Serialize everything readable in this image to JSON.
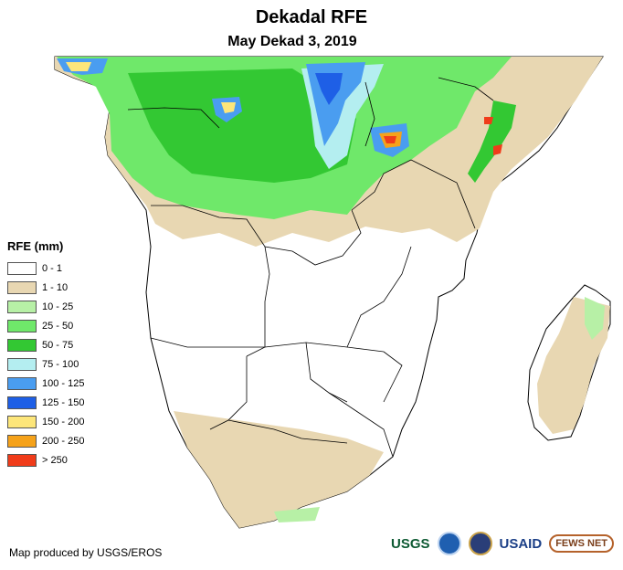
{
  "title": "Dekadal RFE",
  "subtitle": "May Dekad 3, 2019",
  "legend": {
    "title": "RFE (mm)",
    "items": [
      {
        "label": "0 - 1",
        "color": "#ffffff"
      },
      {
        "label": "1 - 10",
        "color": "#e8d7b2"
      },
      {
        "label": "10 - 25",
        "color": "#b7f0a6"
      },
      {
        "label": "25 - 50",
        "color": "#6fe86a"
      },
      {
        "label": "50 - 75",
        "color": "#33c833"
      },
      {
        "label": "75 - 100",
        "color": "#b4eef0"
      },
      {
        "label": "100 - 125",
        "color": "#4a9df0"
      },
      {
        "label": "125 - 150",
        "color": "#1e5fe6"
      },
      {
        "label": "150 - 200",
        "color": "#fde67a"
      },
      {
        "label": "200 - 250",
        "color": "#f5a21a"
      },
      {
        "label": "> 250",
        "color": "#f03c1a"
      }
    ]
  },
  "credit": "Map produced by USGS/EROS",
  "logos": {
    "usgs": "USGS",
    "noaa_icon": "noaa-logo-icon",
    "seal_icon": "state-seal-icon",
    "usaid": "USAID",
    "fews": "FEWS NET"
  }
}
